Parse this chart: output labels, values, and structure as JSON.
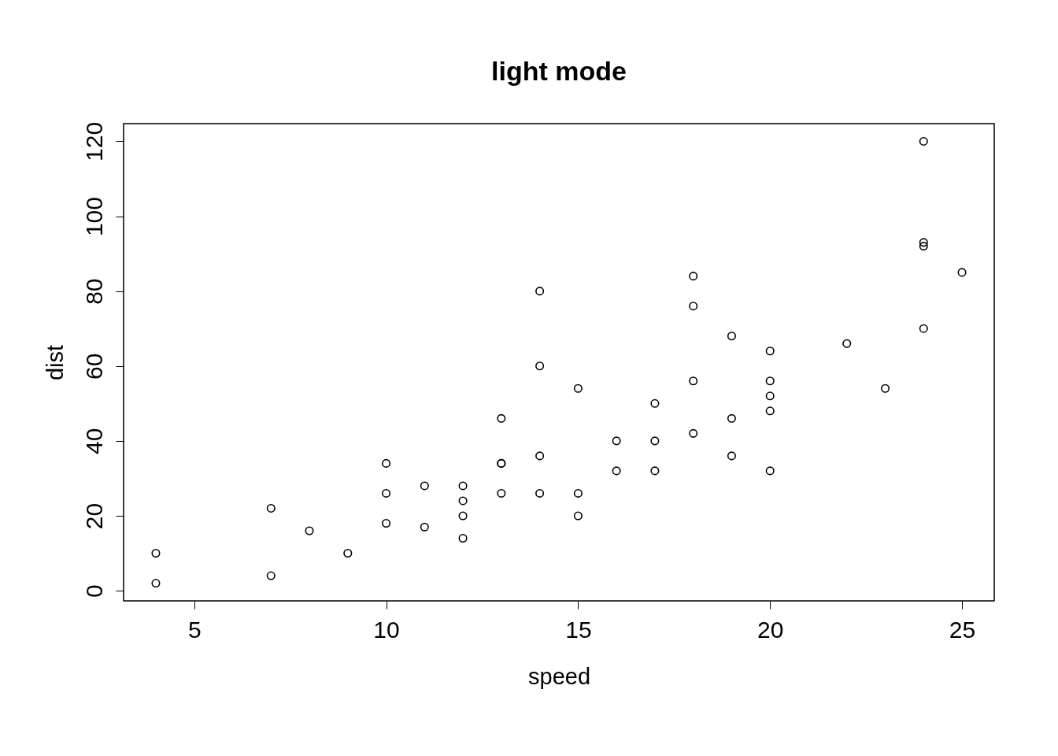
{
  "chart_data": {
    "type": "scatter",
    "title": "light mode",
    "xlabel": "speed",
    "ylabel": "dist",
    "x": [
      4,
      4,
      7,
      7,
      8,
      9,
      10,
      10,
      10,
      11,
      11,
      12,
      12,
      12,
      12,
      13,
      13,
      13,
      13,
      14,
      14,
      14,
      14,
      15,
      15,
      15,
      16,
      16,
      17,
      17,
      17,
      18,
      18,
      18,
      18,
      19,
      19,
      19,
      20,
      20,
      20,
      20,
      20,
      22,
      23,
      24,
      24,
      24,
      24,
      25
    ],
    "series": [
      {
        "color": "#000000",
        "values": [
          2,
          10,
          4,
          22,
          16,
          10,
          18,
          26,
          34,
          17,
          28,
          14,
          20,
          24,
          28,
          26,
          34,
          34,
          46,
          26,
          36,
          60,
          80,
          20,
          26,
          54,
          32,
          40,
          32,
          40,
          50,
          42,
          56,
          76,
          84,
          36,
          46,
          68,
          32,
          48,
          52,
          56,
          64,
          66,
          54,
          70,
          92,
          93,
          120,
          85
        ]
      }
    ],
    "xlim": [
      3.16,
      25.84
    ],
    "ylim": [
      -2.72,
      124.72
    ],
    "xticks": [
      5,
      10,
      15,
      20,
      25
    ],
    "yticks": [
      0,
      20,
      40,
      60,
      80,
      100,
      120
    ],
    "grid": false,
    "legend": false,
    "marker": "circle"
  }
}
